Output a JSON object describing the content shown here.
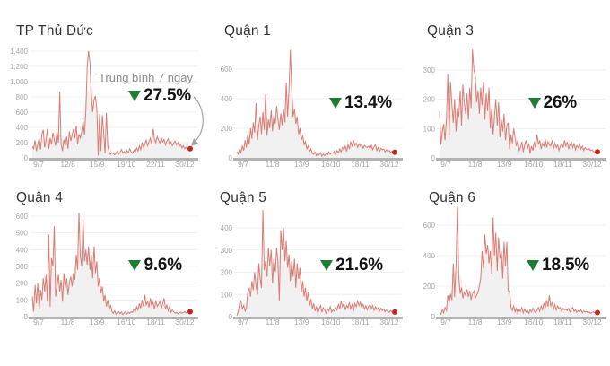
{
  "moving_average_window_days": 7,
  "colors": {
    "line": "#db7b72",
    "area_fill": "#f1f1f1",
    "end_dot": "#c2281a",
    "triangle_green": "#1e7c33",
    "baseline": "#b3b3b3",
    "gridline": "#efefef",
    "axis_text": "#a6a6a6",
    "title_text": "#333333",
    "pct_text": "#141414",
    "note_text": "#8c8c8c",
    "arrow": "#a3a3a3"
  },
  "chart_data": [
    {
      "type": "area",
      "title": "TP Thủ Đức",
      "change": "27.5%",
      "direction": "down",
      "note": "Trung bình 7 ngày",
      "x_ticks": [
        "9/7",
        "12/8",
        "15/9",
        "19/10",
        "22/11",
        "30/12"
      ],
      "y_ticks": [
        0,
        200,
        400,
        600,
        800,
        1000,
        1200,
        1400
      ],
      "values": [
        150,
        120,
        230,
        90,
        180,
        260,
        110,
        310,
        370,
        140,
        220,
        380,
        120,
        260,
        180,
        330,
        240,
        160,
        350,
        200,
        870,
        180,
        90,
        240,
        160,
        280,
        120,
        350,
        220,
        300,
        380,
        260,
        420,
        180,
        310,
        260,
        350,
        480,
        300,
        620,
        1180,
        1400,
        1250,
        820,
        600,
        760,
        810,
        650,
        30,
        580,
        90,
        560,
        320,
        60,
        590,
        150,
        80,
        45,
        70,
        55,
        40,
        60,
        90,
        50,
        75,
        110,
        65,
        85,
        55,
        95,
        70,
        120,
        80,
        60,
        100,
        75,
        130,
        90,
        160,
        110,
        200,
        140,
        180,
        230,
        160,
        210,
        260,
        180,
        380,
        240,
        200,
        280,
        230,
        190,
        260,
        210,
        240,
        170,
        220,
        250,
        180,
        210,
        160,
        190,
        220,
        170,
        200,
        150,
        180,
        130,
        160,
        120,
        140,
        110,
        130,
        105
      ]
    },
    {
      "type": "area",
      "title": "Quận 1",
      "change": "13.4%",
      "direction": "down",
      "x_ticks": [
        "9/7",
        "11/8",
        "13/9",
        "16/10",
        "18/11",
        "30/12"
      ],
      "y_ticks": [
        0,
        200,
        400,
        600
      ],
      "values": [
        40,
        25,
        60,
        35,
        80,
        50,
        120,
        70,
        160,
        90,
        200,
        130,
        240,
        170,
        370,
        120,
        220,
        280,
        160,
        310,
        190,
        430,
        150,
        260,
        200,
        320,
        180,
        290,
        230,
        350,
        260,
        190,
        300,
        220,
        330,
        240,
        510,
        280,
        460,
        730,
        460,
        280,
        330,
        230,
        280,
        160,
        200,
        120,
        150,
        90,
        110,
        60,
        80,
        45,
        60,
        30,
        25,
        40,
        15,
        30,
        20,
        35,
        10,
        25,
        15,
        30,
        20,
        40,
        25,
        35,
        30,
        45,
        25,
        50,
        35,
        60,
        40,
        70,
        55,
        80,
        45,
        90,
        60,
        110,
        75,
        120,
        85,
        100,
        70,
        95,
        80,
        90,
        65,
        85,
        75,
        70,
        80,
        60,
        85,
        55,
        75,
        90,
        50,
        70,
        45,
        65,
        55,
        60,
        40,
        55,
        45,
        50,
        38,
        45,
        35,
        35
      ]
    },
    {
      "type": "area",
      "title": "Quận 3",
      "change": "26%",
      "direction": "down",
      "x_ticks": [
        "9/7",
        "11/8",
        "13/9",
        "16/10",
        "18/11",
        "30/12"
      ],
      "y_ticks": [
        0,
        100,
        200,
        300
      ],
      "values": [
        160,
        45,
        90,
        115,
        60,
        130,
        285,
        75,
        260,
        180,
        120,
        200,
        90,
        170,
        140,
        230,
        110,
        250,
        190,
        150,
        220,
        130,
        240,
        170,
        370,
        300,
        280,
        190,
        230,
        150,
        240,
        180,
        260,
        130,
        220,
        160,
        240,
        100,
        170,
        80,
        140,
        200,
        110,
        190,
        70,
        130,
        90,
        150,
        60,
        110,
        120,
        30,
        80,
        50,
        100,
        70,
        40,
        60,
        25,
        35,
        55,
        20,
        45,
        60,
        30,
        50,
        15,
        40,
        25,
        55,
        35,
        80,
        45,
        60,
        30,
        50,
        40,
        65,
        35,
        55,
        45,
        40,
        60,
        30,
        50,
        35,
        45,
        25,
        40,
        50,
        35,
        60,
        40,
        55,
        30,
        45,
        55,
        35,
        50,
        28,
        42,
        35,
        48,
        30,
        40,
        25,
        35,
        30,
        28,
        32,
        25,
        28,
        22,
        20,
        18,
        22
      ]
    },
    {
      "type": "area",
      "title": "Quận 4",
      "change": "9.6%",
      "direction": "down",
      "x_ticks": [
        "9/7",
        "11/8",
        "13/9",
        "16/10",
        "18/11",
        "30/12"
      ],
      "y_ticks": [
        0,
        100,
        200,
        300,
        400,
        500,
        600
      ],
      "values": [
        120,
        30,
        190,
        80,
        200,
        45,
        160,
        100,
        230,
        150,
        250,
        90,
        490,
        60,
        350,
        300,
        540,
        120,
        180,
        250,
        150,
        220,
        90,
        260,
        170,
        230,
        130,
        200,
        240,
        180,
        260,
        220,
        370,
        280,
        620,
        360,
        300,
        580,
        330,
        400,
        310,
        420,
        280,
        370,
        230,
        420,
        260,
        330,
        180,
        230,
        140,
        180,
        90,
        130,
        60,
        100,
        40,
        70,
        30,
        20,
        35,
        15,
        25,
        30,
        18,
        28,
        12,
        22,
        30,
        16,
        26,
        20,
        30,
        25,
        45,
        30,
        60,
        40,
        80,
        50,
        100,
        60,
        130,
        70,
        90,
        55,
        110,
        65,
        85,
        45,
        95,
        60,
        75,
        90,
        50,
        80,
        110,
        45,
        70,
        35,
        60,
        25,
        40,
        30,
        20,
        25,
        18,
        22,
        28,
        20,
        25,
        30,
        22,
        28,
        32,
        35
      ]
    },
    {
      "type": "area",
      "title": "Quận 5",
      "change": "21.6%",
      "direction": "down",
      "x_ticks": [
        "9/7",
        "11/8",
        "13/9",
        "16/10",
        "18/11",
        "30/12"
      ],
      "y_ticks": [
        0,
        100,
        200,
        300,
        400
      ],
      "values": [
        5,
        20,
        60,
        70,
        35,
        50,
        25,
        40,
        110,
        130,
        90,
        160,
        120,
        200,
        140,
        100,
        240,
        170,
        130,
        480,
        210,
        250,
        180,
        310,
        230,
        300,
        150,
        260,
        200,
        310,
        240,
        70,
        390,
        300,
        400,
        250,
        340,
        220,
        280,
        160,
        250,
        180,
        260,
        130,
        240,
        170,
        220,
        110,
        160,
        90,
        130,
        70,
        110,
        50,
        80,
        35,
        60,
        25,
        45,
        15,
        35,
        50,
        20,
        40,
        30,
        15,
        35,
        25,
        45,
        20,
        30,
        25,
        40,
        30,
        55,
        35,
        70,
        45,
        60,
        30,
        50,
        40,
        65,
        35,
        55,
        25,
        60,
        45,
        70,
        50,
        65,
        40,
        55,
        35,
        50,
        30,
        45,
        55,
        35,
        50,
        28,
        45,
        32,
        40,
        25,
        38,
        28,
        35,
        22,
        30,
        25,
        20,
        28,
        22,
        18,
        15
      ]
    },
    {
      "type": "area",
      "title": "Quận 6",
      "change": "18.5%",
      "direction": "down",
      "x_ticks": [
        "9/7",
        "11/8",
        "13/9",
        "16/10",
        "18/11",
        "30/12"
      ],
      "y_ticks": [
        0,
        200,
        400,
        600
      ],
      "values": [
        30,
        15,
        45,
        25,
        60,
        40,
        140,
        90,
        150,
        110,
        350,
        130,
        340,
        720,
        260,
        150,
        190,
        120,
        160,
        140,
        180,
        130,
        170,
        110,
        150,
        170,
        120,
        140,
        160,
        200,
        250,
        430,
        320,
        540,
        410,
        470,
        350,
        430,
        280,
        650,
        400,
        550,
        300,
        520,
        380,
        430,
        250,
        490,
        330,
        490,
        170,
        160,
        60,
        40,
        70,
        30,
        55,
        20,
        45,
        35,
        60,
        25,
        50,
        30,
        40,
        20,
        45,
        30,
        55,
        35,
        25,
        40,
        60,
        35,
        70,
        45,
        90,
        55,
        110,
        65,
        140,
        70,
        90,
        50,
        80,
        40,
        70,
        55,
        60,
        35,
        55,
        45,
        50,
        40,
        55,
        30,
        50,
        60,
        35,
        45,
        28,
        40,
        32,
        45,
        25,
        38,
        30,
        35,
        25,
        30,
        22,
        28,
        32,
        26,
        24,
        25
      ]
    }
  ]
}
